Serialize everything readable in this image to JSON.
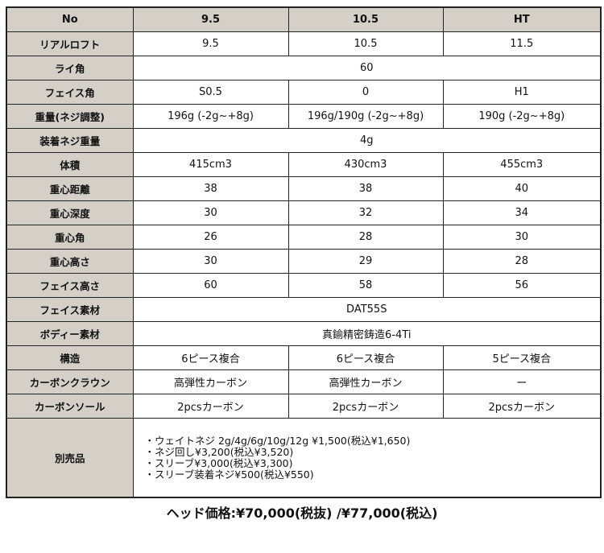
{
  "header": {
    "label": "No",
    "cols": [
      "9.5",
      "10.5",
      "HT"
    ]
  },
  "rows": [
    {
      "label": "リアルロフト",
      "values": [
        "9.5",
        "10.5",
        "11.5"
      ]
    },
    {
      "label": "ライ角",
      "span": "60"
    },
    {
      "label": "フェイス角",
      "values": [
        "S0.5",
        "0",
        "H1"
      ]
    },
    {
      "label": "重量(ネジ調整)",
      "values": [
        "196g (-2g~+8g)",
        "196g/190g (-2g~+8g)",
        "190g (-2g~+8g)"
      ]
    },
    {
      "label": "装着ネジ重量",
      "span": "4g"
    },
    {
      "label": "体積",
      "values": [
        "415cm3",
        "430cm3",
        "455cm3"
      ]
    },
    {
      "label": "重心距離",
      "values": [
        "38",
        "38",
        "40"
      ]
    },
    {
      "label": "重心深度",
      "values": [
        "30",
        "32",
        "34"
      ]
    },
    {
      "label": "重心角",
      "values": [
        "26",
        "28",
        "30"
      ]
    },
    {
      "label": "重心高さ",
      "values": [
        "30",
        "29",
        "28"
      ]
    },
    {
      "label": "フェイス高さ",
      "values": [
        "60",
        "58",
        "56"
      ]
    },
    {
      "label": "フェイス素材",
      "span": "DAT55S"
    },
    {
      "label": "ボディー素材",
      "span": "真鍮精密鋳造6-4Ti"
    },
    {
      "label": "構造",
      "values": [
        "6ピース複合",
        "6ピース複合",
        "5ピース複合"
      ]
    },
    {
      "label": "カーボンクラウン",
      "values": [
        "高弾性カーボン",
        "高弾性カーボン",
        "ー"
      ]
    },
    {
      "label": "カーボンソール",
      "values": [
        "2pcsカーボン",
        "2pcsカーボン",
        "2pcsカーボン"
      ]
    }
  ],
  "extras": {
    "label": "別売品",
    "items": [
      "・ウェイトネジ  2g/4g/6g/10g/12g  ¥1,500(税込¥1,650)",
      "・ネジ回し¥3,200(税込¥3,520)",
      "・スリーブ¥3,000(税込¥3,300)",
      "・スリーブ装着ネジ¥500(税込¥550)"
    ]
  },
  "price": "ヘッド価格:¥70,000(税抜) /¥77,000(税込)"
}
